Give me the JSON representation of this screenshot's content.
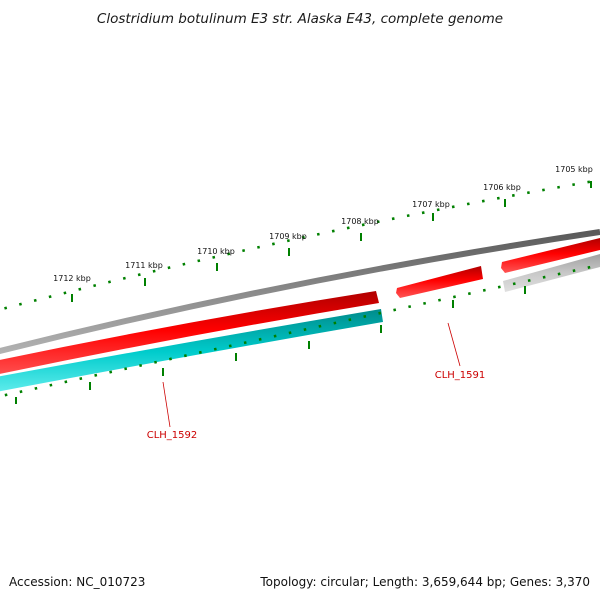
{
  "title": "Clostridium botulinum E3 str. Alaska E43, complete genome",
  "footer": {
    "accession": "Accession: NC_010723",
    "summary": "Topology: circular; Length: 3,659,644 bp; Genes: 3,370"
  },
  "scale_ticks": [
    {
      "label": "1705 kbp"
    },
    {
      "label": "1706 kbp"
    },
    {
      "label": "1707 kbp"
    },
    {
      "label": "1708 kbp"
    },
    {
      "label": "1709 kbp"
    },
    {
      "label": "1710 kbp"
    },
    {
      "label": "1711 kbp"
    },
    {
      "label": "1712 kbp"
    }
  ],
  "genes": [
    {
      "label": "CLH_1591",
      "strand": "forward",
      "color": "#ff0000"
    },
    {
      "label": "CLH_1592",
      "strand": "reverse",
      "color": "#00cccc"
    }
  ],
  "colors": {
    "backbone": "#808080",
    "forward_cds": "#ff0000",
    "reverse_cds": "#00cccc",
    "grey_feature": "#c0c0c0",
    "scale": "#008000",
    "gene_label": "#cc0000"
  }
}
